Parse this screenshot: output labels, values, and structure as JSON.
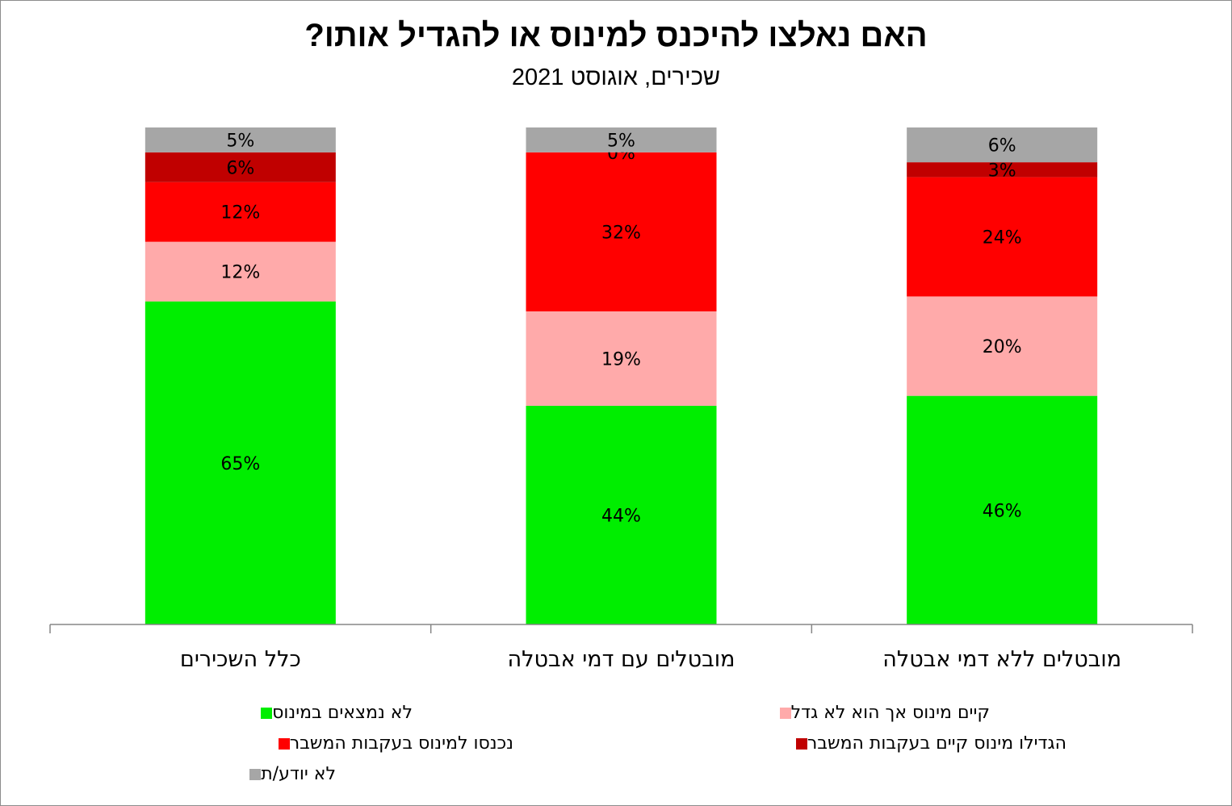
{
  "chart_data": {
    "type": "bar",
    "stacked": true,
    "title": "האם נאלצו להיכנס למינוס או להגדיל אותו?",
    "subtitle": "שכירים, אוגוסט 2021",
    "categories": [
      "כלל השכירים",
      "מובטלים עם דמי אבטלה",
      "מובטלים ללא דמי אבטלה"
    ],
    "ylim": [
      0,
      100
    ],
    "grid": false,
    "legend_position": "bottom",
    "series": [
      {
        "name": "לא נמצאים במינוס",
        "color": "#00ee00",
        "values": [
          65,
          44,
          46
        ],
        "labels": [
          "65%",
          "44%",
          "46%"
        ]
      },
      {
        "name": "קיים מינוס אך הוא לא גדל",
        "color": "#ffaaaa",
        "values": [
          12,
          19,
          20
        ],
        "labels": [
          "12%",
          "19%",
          "20%"
        ]
      },
      {
        "name": "נכנסו למינוס בעקבות המשבר",
        "color": "#ff0000",
        "values": [
          12,
          32,
          24
        ],
        "labels": [
          "12%",
          "32%",
          "24%"
        ]
      },
      {
        "name": "הגדילו מינוס קיים בעקבות המשבר",
        "color": "#c00000",
        "values": [
          6,
          0,
          3
        ],
        "labels": [
          "6%",
          "0%",
          "3%"
        ]
      },
      {
        "name": "לא יודע/ת",
        "color": "#a6a6a6",
        "values": [
          5,
          5,
          6
        ],
        "labels": [
          "5%",
          "5%",
          "6%"
        ]
      }
    ]
  }
}
